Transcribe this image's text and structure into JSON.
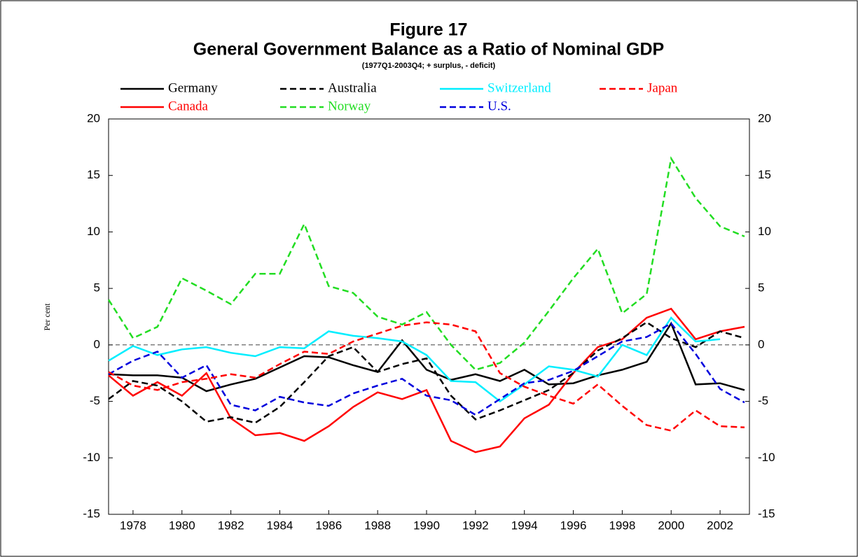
{
  "chart_data": {
    "type": "line",
    "title": "Figure 17",
    "subtitle": "General Government Balance as a Ratio of Nominal GDP",
    "note": "(1977Q1-2003Q4; + surplus, - deficit)",
    "y_label": "Per cent",
    "x": [
      1977,
      1978,
      1979,
      1980,
      1981,
      1982,
      1983,
      1984,
      1985,
      1986,
      1987,
      1988,
      1989,
      1990,
      1991,
      1992,
      1993,
      1994,
      1995,
      1996,
      1997,
      1998,
      1999,
      2000,
      2001,
      2002,
      2003
    ],
    "xlim": [
      1977,
      2003.2
    ],
    "xticks": [
      1978,
      1980,
      1982,
      1984,
      1986,
      1988,
      1990,
      1992,
      1994,
      1996,
      1998,
      2000,
      2002
    ],
    "ylim": [
      -15,
      20
    ],
    "yticks": [
      -15,
      -10,
      -5,
      0,
      5,
      10,
      15,
      20
    ],
    "reference_line": 0,
    "series": [
      {
        "name": "Germany",
        "color": "#000000",
        "dashed": false,
        "values": [
          -2.6,
          -2.7,
          -2.7,
          -2.9,
          -4.1,
          -3.5,
          -3.0,
          -2.0,
          -1.0,
          -1.1,
          -1.8,
          -2.4,
          0.4,
          -2.2,
          -3.1,
          -2.6,
          -3.2,
          -2.2,
          -3.5,
          -3.4,
          -2.7,
          -2.2,
          -1.5,
          1.9,
          -3.5,
          -3.4,
          -4.0
        ]
      },
      {
        "name": "Canada",
        "color": "#ff0000",
        "dashed": false,
        "values": [
          -2.7,
          -4.5,
          -3.3,
          -4.5,
          -2.5,
          -6.5,
          -8.0,
          -7.8,
          -8.5,
          -7.2,
          -5.5,
          -4.2,
          -4.8,
          -4.0,
          -8.5,
          -9.5,
          -9.0,
          -6.5,
          -5.3,
          -2.5,
          -0.2,
          0.5,
          2.4,
          3.2,
          0.5,
          1.2,
          1.6
        ]
      },
      {
        "name": "Australia",
        "color": "#000000",
        "dashed": true,
        "values": [
          -4.8,
          -3.2,
          -3.6,
          -5.0,
          -6.8,
          -6.4,
          -6.9,
          -5.5,
          -3.3,
          -1.0,
          -0.2,
          -2.4,
          -1.7,
          -1.2,
          -4.5,
          -6.6,
          -5.8,
          -4.9,
          -4.0,
          -2.5,
          -0.5,
          0.6,
          2.0,
          0.6,
          -0.2,
          1.2,
          0.6
        ]
      },
      {
        "name": "Norway",
        "color": "#22dd22",
        "dashed": true,
        "values": [
          4.0,
          0.6,
          1.6,
          5.9,
          4.8,
          3.6,
          6.3,
          6.3,
          10.7,
          5.2,
          4.6,
          2.5,
          1.8,
          2.9,
          0.0,
          -2.2,
          -1.6,
          0.2,
          3.0,
          5.9,
          8.5,
          2.8,
          4.5,
          16.5,
          13.0,
          10.5,
          9.6
        ]
      },
      {
        "name": "Switzerland",
        "color": "#00eeff",
        "dashed": false,
        "values": [
          -1.4,
          -0.1,
          -0.9,
          -0.4,
          -0.2,
          -0.7,
          -1.0,
          -0.2,
          -0.3,
          1.2,
          0.8,
          0.6,
          0.3,
          -0.9,
          -3.2,
          -3.3,
          -5.0,
          -3.5,
          -1.9,
          -2.2,
          -2.8,
          0.0,
          -0.9,
          2.4,
          0.3,
          0.5,
          null
        ]
      },
      {
        "name": "U.S.",
        "color": "#0000dd",
        "dashed": true,
        "values": [
          -2.6,
          -1.4,
          -0.6,
          -2.9,
          -1.8,
          -5.3,
          -5.8,
          -4.6,
          -5.1,
          -5.4,
          -4.3,
          -3.6,
          -3.0,
          -4.5,
          -4.9,
          -6.2,
          -4.8,
          -3.4,
          -3.1,
          -2.3,
          -1.0,
          0.3,
          0.7,
          1.9,
          -0.8,
          -3.9,
          -5.1
        ]
      },
      {
        "name": "Japan",
        "color": "#ff0000",
        "dashed": true,
        "values": [
          -2.4,
          -3.6,
          -4.0,
          -3.3,
          -3.0,
          -2.6,
          -2.9,
          -1.7,
          -0.6,
          -0.8,
          0.3,
          1.0,
          1.7,
          2.0,
          1.8,
          1.2,
          -2.5,
          -3.7,
          -4.5,
          -5.2,
          -3.5,
          -5.4,
          -7.1,
          -7.6,
          -5.8,
          -7.2,
          -7.3
        ]
      }
    ]
  }
}
